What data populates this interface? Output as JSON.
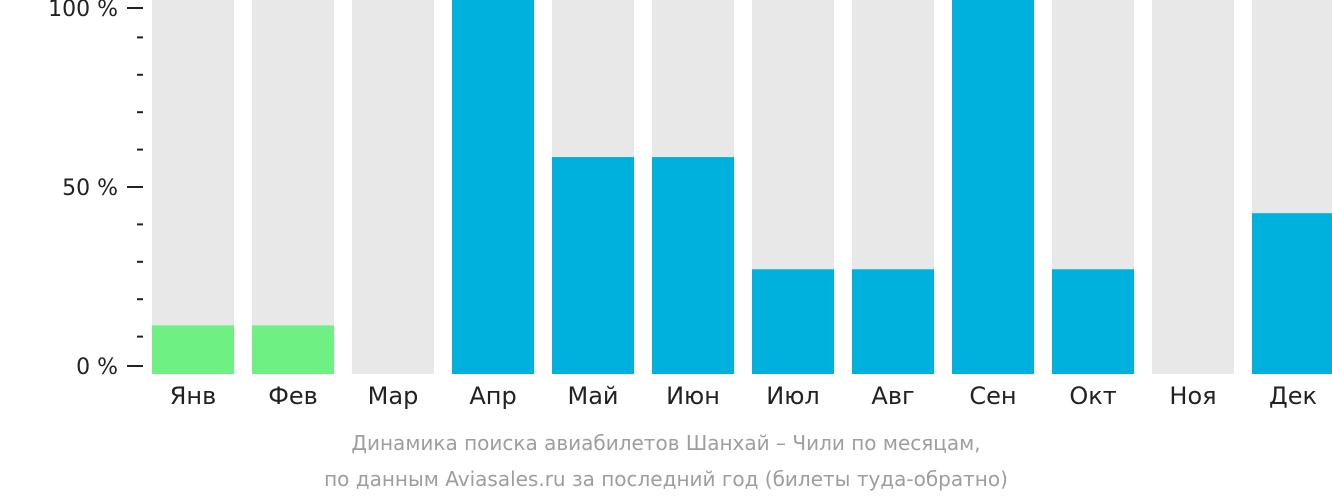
{
  "chart_data": {
    "type": "bar",
    "categories": [
      "Янв",
      "Фев",
      "Мар",
      "Апр",
      "Май",
      "Июн",
      "Июл",
      "Авг",
      "Сен",
      "Окт",
      "Ноя",
      "Дек"
    ],
    "values": [
      13,
      13,
      0,
      100,
      58,
      58,
      28,
      28,
      100,
      28,
      0,
      43
    ],
    "highlight_colors": [
      "#6ef083",
      "#6ef083",
      "#00b0dd",
      "#00b0dd",
      "#00b0dd",
      "#00b0dd",
      "#00b0dd",
      "#00b0dd",
      "#00b0dd",
      "#00b0dd",
      "#00b0dd",
      "#00b0dd"
    ],
    "background_color": "#e8e8e8",
    "ylim": [
      0,
      100
    ],
    "y_ticks": [
      "0 %",
      "50 %",
      "100 %"
    ],
    "grid": false
  },
  "caption": {
    "line1": "Динамика поиска авиабилетов Шанхай – Чили по месяцам,",
    "line2": "по данным Aviasales.ru за последний год (билеты туда-обратно)"
  }
}
